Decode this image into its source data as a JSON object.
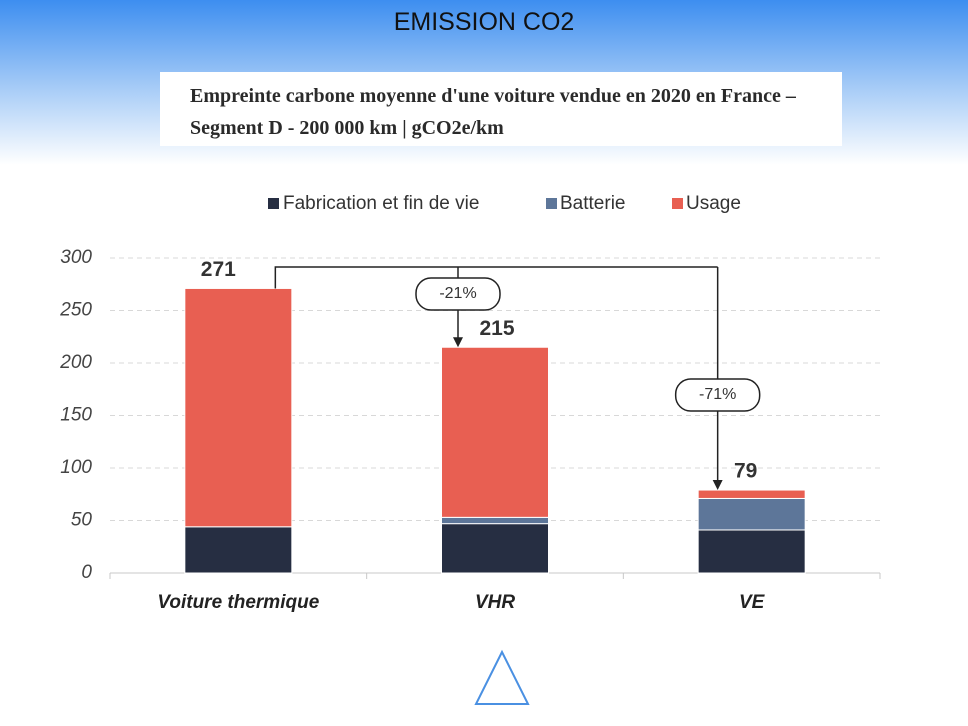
{
  "chart_data": {
    "type": "stacked_bar",
    "title": "EMISSION CO2",
    "subtitle": "Empreinte carbone moyenne d'une voiture vendue en 2020 en France – Segment D - 200 000 km | gCO2e/km",
    "categories": [
      "Voiture thermique",
      "VHR",
      "VE"
    ],
    "series": [
      {
        "name": "Fabrication et fin de vie",
        "color": "#262e42",
        "values": [
          44,
          47,
          41
        ]
      },
      {
        "name": "Batterie",
        "color": "#5d7699",
        "values": [
          0,
          6,
          30
        ]
      },
      {
        "name": "Usage",
        "color": "#e85f52",
        "values": [
          227,
          162,
          8
        ]
      }
    ],
    "totals": [
      271,
      215,
      79
    ],
    "annotations": [
      "-21%",
      "-71%"
    ],
    "ylim": [
      0,
      300
    ],
    "yticks": [
      0,
      50,
      100,
      150,
      200,
      250,
      300
    ],
    "grid": true
  }
}
